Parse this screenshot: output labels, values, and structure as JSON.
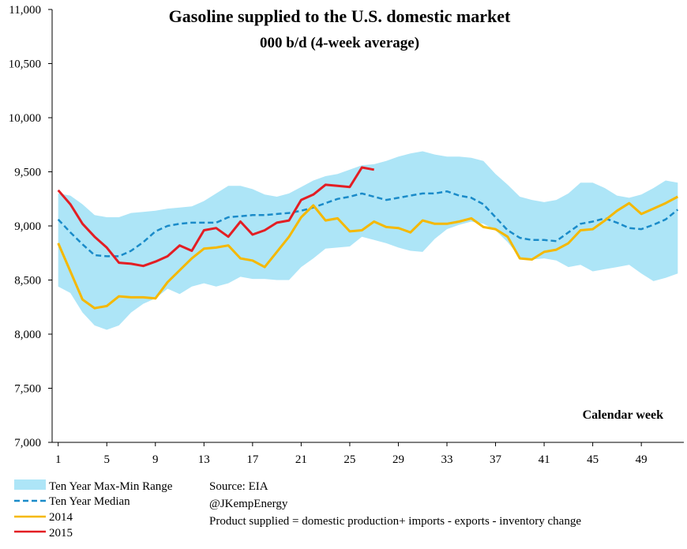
{
  "chart_data": {
    "type": "line",
    "title": "Gasoline supplied to the U.S. domestic market",
    "subtitle": "000 b/d (4-week average)",
    "xlabel": "Calendar week",
    "ylabel": "",
    "xlim": [
      1,
      52
    ],
    "ylim": [
      7000,
      11000
    ],
    "y_ticks": [
      7000,
      7500,
      8000,
      8500,
      9000,
      9500,
      10000,
      10500,
      11000
    ],
    "y_tick_labels": [
      "7,000",
      "7,500",
      "8,000",
      "8,500",
      "9,000",
      "9,500",
      "10,000",
      "10,500",
      "11,000"
    ],
    "x_ticks": [
      1,
      5,
      9,
      13,
      17,
      21,
      25,
      29,
      33,
      37,
      41,
      45,
      49
    ],
    "x_tick_labels": [
      "1",
      "5",
      "9",
      "13",
      "17",
      "21",
      "25",
      "29",
      "33",
      "37",
      "41",
      "45",
      "49"
    ],
    "grid": false,
    "legend_position": "bottom-left",
    "weeks": [
      1,
      2,
      3,
      4,
      5,
      6,
      7,
      8,
      9,
      10,
      11,
      12,
      13,
      14,
      15,
      16,
      17,
      18,
      19,
      20,
      21,
      22,
      23,
      24,
      25,
      26,
      27,
      28,
      29,
      30,
      31,
      32,
      33,
      34,
      35,
      36,
      37,
      38,
      39,
      40,
      41,
      42,
      43,
      44,
      45,
      46,
      47,
      48,
      49,
      50,
      51,
      52
    ],
    "range": {
      "name": "Ten Year Max-Min Range",
      "color": "#ade5f7",
      "max": [
        9300,
        9280,
        9200,
        9100,
        9080,
        9080,
        9120,
        9130,
        9140,
        9160,
        9170,
        9180,
        9230,
        9300,
        9370,
        9370,
        9340,
        9290,
        9270,
        9300,
        9360,
        9420,
        9460,
        9480,
        9520,
        9560,
        9570,
        9600,
        9640,
        9670,
        9690,
        9660,
        9640,
        9640,
        9630,
        9600,
        9480,
        9380,
        9270,
        9240,
        9220,
        9240,
        9300,
        9400,
        9400,
        9350,
        9280,
        9260,
        9290,
        9350,
        9420,
        9400
      ],
      "min": [
        8440,
        8380,
        8200,
        8080,
        8040,
        8080,
        8200,
        8280,
        8330,
        8420,
        8370,
        8440,
        8470,
        8440,
        8470,
        8530,
        8510,
        8510,
        8500,
        8500,
        8620,
        8700,
        8790,
        8800,
        8810,
        8900,
        8870,
        8840,
        8800,
        8770,
        8760,
        8880,
        8970,
        9010,
        9040,
        9020,
        8960,
        8850,
        8710,
        8690,
        8700,
        8680,
        8620,
        8640,
        8580,
        8600,
        8620,
        8640,
        8560,
        8490,
        8520,
        8560
      ]
    },
    "series": [
      {
        "name": "Ten Year Median",
        "color": "#1a8bc9",
        "dash": true,
        "values": [
          9060,
          8940,
          8830,
          8730,
          8720,
          8720,
          8770,
          8850,
          8950,
          9000,
          9020,
          9030,
          9030,
          9030,
          9080,
          9090,
          9100,
          9100,
          9110,
          9120,
          9140,
          9170,
          9210,
          9250,
          9270,
          9300,
          9270,
          9240,
          9260,
          9280,
          9300,
          9300,
          9320,
          9280,
          9260,
          9200,
          9080,
          8960,
          8890,
          8870,
          8870,
          8860,
          8940,
          9020,
          9040,
          9070,
          9030,
          8980,
          8970,
          9010,
          9060,
          9150
        ]
      },
      {
        "name": "2014",
        "color": "#f5b800",
        "dash": false,
        "values": [
          8840,
          8580,
          8320,
          8240,
          8260,
          8350,
          8340,
          8340,
          8330,
          8480,
          8590,
          8700,
          8790,
          8800,
          8820,
          8700,
          8680,
          8620,
          8760,
          8900,
          9080,
          9190,
          9050,
          9070,
          8950,
          8960,
          9040,
          8990,
          8980,
          8940,
          9050,
          9020,
          9020,
          9040,
          9070,
          8990,
          8970,
          8900,
          8700,
          8690,
          8760,
          8780,
          8840,
          8960,
          8970,
          9050,
          9140,
          9210,
          9110,
          9160,
          9210,
          9270
        ]
      },
      {
        "name": "2015",
        "color": "#e31e24",
        "dash": false,
        "values": [
          9330,
          9200,
          9020,
          8900,
          8800,
          8660,
          8650,
          8630,
          8670,
          8720,
          8820,
          8770,
          8960,
          8980,
          8900,
          9040,
          8920,
          8960,
          9030,
          9050,
          9240,
          9290,
          9380,
          9370,
          9360,
          9540,
          9520
        ]
      }
    ]
  },
  "notes": {
    "source": "Source: EIA",
    "handle": "@JKempEnergy",
    "definition": "Product supplied = domestic production+ imports - exports - inventory change"
  }
}
